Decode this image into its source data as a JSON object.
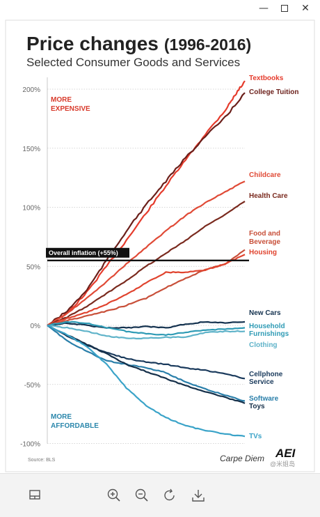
{
  "window": {
    "controls": [
      "minimize",
      "maximize",
      "close"
    ]
  },
  "chart_data": {
    "type": "line",
    "title": "Price changes",
    "title_years": "(1996-2016)",
    "subtitle": "Selected Consumer Goods and Services",
    "ylim": [
      -100,
      210
    ],
    "y_ticks": [
      200,
      150,
      100,
      50,
      0,
      -50,
      -100
    ],
    "y_tick_labels": [
      "200%",
      "150%",
      "100%",
      "50%",
      "0%",
      "-50%",
      "-100%"
    ],
    "grid": true,
    "x_start": 1996,
    "x_end": 2016,
    "annotations": {
      "more_expensive": [
        "MORE",
        "EXPENSIVE"
      ],
      "more_affordable": [
        "MORE",
        "AFFORDABLE"
      ],
      "inflation_label": "Overall inflation (+55%)",
      "inflation_value": 55,
      "source": "Source: BLS",
      "credit": "Carpe Diem",
      "logo": "AEI",
      "watermark": "@米姐岛"
    },
    "series": [
      {
        "name": "Textbooks",
        "lines": [
          "Textbooks"
        ],
        "color": "#e53b2c",
        "values": [
          [
            1996,
            0
          ],
          [
            1998,
            10
          ],
          [
            2000,
            28
          ],
          [
            2002,
            50
          ],
          [
            2004,
            72
          ],
          [
            2006,
            95
          ],
          [
            2008,
            118
          ],
          [
            2010,
            140
          ],
          [
            2012,
            162
          ],
          [
            2014,
            182
          ],
          [
            2015,
            195
          ],
          [
            2016,
            207
          ]
        ]
      },
      {
        "name": "College Tuition",
        "lines": [
          "College Tuition"
        ],
        "color": "#6b1f1a",
        "values": [
          [
            1996,
            0
          ],
          [
            1998,
            12
          ],
          [
            2000,
            30
          ],
          [
            2002,
            55
          ],
          [
            2004,
            80
          ],
          [
            2006,
            102
          ],
          [
            2008,
            122
          ],
          [
            2010,
            142
          ],
          [
            2012,
            160
          ],
          [
            2014,
            176
          ],
          [
            2016,
            197
          ]
        ]
      },
      {
        "name": "Childcare",
        "lines": [
          "Childcare"
        ],
        "color": "#e04a36",
        "values": [
          [
            1996,
            0
          ],
          [
            1998,
            10
          ],
          [
            2000,
            23
          ],
          [
            2002,
            37
          ],
          [
            2004,
            52
          ],
          [
            2006,
            66
          ],
          [
            2008,
            80
          ],
          [
            2010,
            93
          ],
          [
            2012,
            104
          ],
          [
            2014,
            113
          ],
          [
            2016,
            122
          ]
        ]
      },
      {
        "name": "Health Care",
        "lines": [
          "Health Care"
        ],
        "color": "#7a2a1e",
        "values": [
          [
            1996,
            0
          ],
          [
            1998,
            7
          ],
          [
            2000,
            16
          ],
          [
            2002,
            27
          ],
          [
            2004,
            38
          ],
          [
            2006,
            50
          ],
          [
            2008,
            61
          ],
          [
            2010,
            72
          ],
          [
            2012,
            84
          ],
          [
            2014,
            94
          ],
          [
            2016,
            105
          ]
        ]
      },
      {
        "name": "Food and Beverage",
        "lines": [
          "Food and",
          "Beverage"
        ],
        "color": "#c8503a",
        "values": [
          [
            1996,
            0
          ],
          [
            1998,
            4
          ],
          [
            2000,
            8
          ],
          [
            2002,
            12
          ],
          [
            2004,
            17
          ],
          [
            2006,
            23
          ],
          [
            2008,
            32
          ],
          [
            2010,
            40
          ],
          [
            2012,
            47
          ],
          [
            2014,
            52
          ],
          [
            2016,
            64
          ]
        ]
      },
      {
        "name": "Housing",
        "lines": [
          "Housing"
        ],
        "color": "#e0432e",
        "values": [
          [
            1996,
            0
          ],
          [
            1998,
            6
          ],
          [
            2000,
            11
          ],
          [
            2002,
            18
          ],
          [
            2004,
            26
          ],
          [
            2006,
            36
          ],
          [
            2008,
            45
          ],
          [
            2010,
            45
          ],
          [
            2012,
            47
          ],
          [
            2014,
            52
          ],
          [
            2016,
            60
          ]
        ]
      },
      {
        "name": "New Cars",
        "lines": [
          "New Cars"
        ],
        "color": "#14324f",
        "values": [
          [
            1996,
            0
          ],
          [
            1998,
            2
          ],
          [
            2000,
            0
          ],
          [
            2002,
            -2
          ],
          [
            2004,
            -2
          ],
          [
            2006,
            -1
          ],
          [
            2008,
            -2
          ],
          [
            2010,
            1
          ],
          [
            2012,
            3
          ],
          [
            2014,
            2
          ],
          [
            2016,
            3
          ]
        ]
      },
      {
        "name": "Household Furnishings",
        "lines": [
          "Household",
          "Furnishings"
        ],
        "color": "#2f9bb5",
        "values": [
          [
            1996,
            0
          ],
          [
            1998,
            3
          ],
          [
            2000,
            2
          ],
          [
            2002,
            -2
          ],
          [
            2004,
            -5
          ],
          [
            2006,
            -7
          ],
          [
            2008,
            -8
          ],
          [
            2010,
            -6
          ],
          [
            2012,
            -4
          ],
          [
            2014,
            -3
          ],
          [
            2016,
            -2
          ]
        ]
      },
      {
        "name": "Clothing",
        "lines": [
          "Clothing"
        ],
        "color": "#5fb3c9",
        "values": [
          [
            1996,
            0
          ],
          [
            1998,
            -2
          ],
          [
            2000,
            -5
          ],
          [
            2002,
            -9
          ],
          [
            2004,
            -11
          ],
          [
            2006,
            -11
          ],
          [
            2008,
            -10
          ],
          [
            2010,
            -10
          ],
          [
            2012,
            -6
          ],
          [
            2014,
            -5
          ],
          [
            2016,
            -5
          ]
        ]
      },
      {
        "name": "Cellphone Service",
        "lines": [
          "Cellphone",
          "Service"
        ],
        "color": "#1a3a5c",
        "values": [
          [
            1996,
            0
          ],
          [
            1998,
            -9
          ],
          [
            2000,
            -17
          ],
          [
            2002,
            -23
          ],
          [
            2004,
            -28
          ],
          [
            2006,
            -31
          ],
          [
            2008,
            -33
          ],
          [
            2010,
            -36
          ],
          [
            2012,
            -38
          ],
          [
            2014,
            -41
          ],
          [
            2016,
            -45
          ]
        ]
      },
      {
        "name": "Software",
        "lines": [
          "Software"
        ],
        "color": "#2a7faa",
        "values": [
          [
            1996,
            0
          ],
          [
            1998,
            -13
          ],
          [
            2000,
            -22
          ],
          [
            2002,
            -30
          ],
          [
            2004,
            -33
          ],
          [
            2006,
            -36
          ],
          [
            2008,
            -40
          ],
          [
            2010,
            -48
          ],
          [
            2012,
            -54
          ],
          [
            2014,
            -59
          ],
          [
            2016,
            -64
          ]
        ]
      },
      {
        "name": "Toys",
        "lines": [
          "Toys"
        ],
        "color": "#16304a",
        "values": [
          [
            1996,
            0
          ],
          [
            1998,
            -8
          ],
          [
            2000,
            -16
          ],
          [
            2002,
            -24
          ],
          [
            2004,
            -33
          ],
          [
            2006,
            -39
          ],
          [
            2008,
            -45
          ],
          [
            2010,
            -51
          ],
          [
            2012,
            -56
          ],
          [
            2014,
            -61
          ],
          [
            2016,
            -66
          ]
        ]
      },
      {
        "name": "TVs",
        "lines": [
          "TVs"
        ],
        "color": "#3aa3c8",
        "values": [
          [
            1996,
            0
          ],
          [
            1998,
            -8
          ],
          [
            2000,
            -18
          ],
          [
            2002,
            -33
          ],
          [
            2004,
            -53
          ],
          [
            2006,
            -68
          ],
          [
            2008,
            -78
          ],
          [
            2010,
            -85
          ],
          [
            2012,
            -89
          ],
          [
            2014,
            -92
          ],
          [
            2016,
            -94
          ]
        ]
      }
    ]
  },
  "toolbar": {
    "items": [
      {
        "name": "layout-toggle-button",
        "icon": "layout-icon"
      },
      {
        "name": "zoom-in-button",
        "icon": "zoom-in-icon"
      },
      {
        "name": "zoom-out-button",
        "icon": "zoom-out-icon"
      },
      {
        "name": "rotate-button",
        "icon": "rotate-icon"
      },
      {
        "name": "download-button",
        "icon": "download-icon"
      }
    ]
  }
}
